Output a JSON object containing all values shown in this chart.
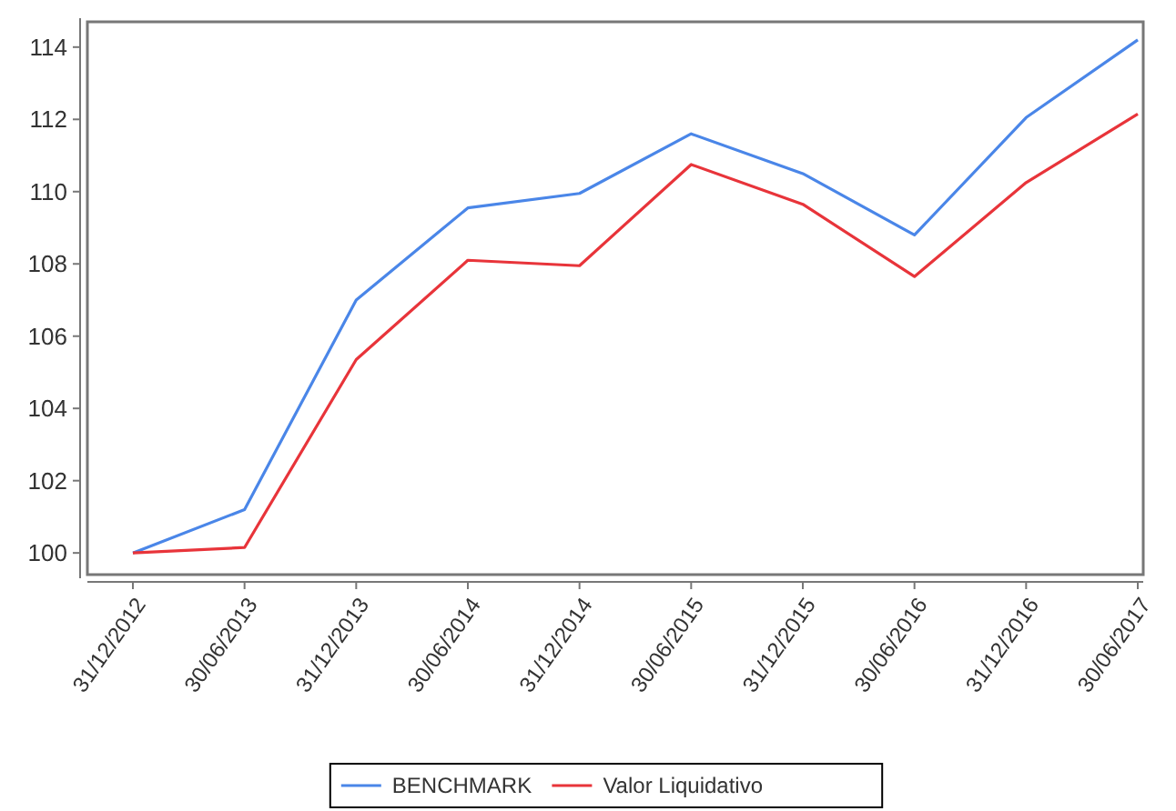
{
  "chart_data": {
    "type": "line",
    "categories": [
      "31/12/2012",
      "30/06/2013",
      "31/12/2013",
      "30/06/2014",
      "31/12/2014",
      "30/06/2015",
      "31/12/2015",
      "30/06/2016",
      "31/12/2016",
      "30/06/2017"
    ],
    "series": [
      {
        "name": "BENCHMARK",
        "color": "#4a86e8",
        "values": [
          100,
          101.2,
          107.0,
          109.55,
          109.95,
          111.6,
          110.5,
          108.8,
          112.05,
          114.2
        ]
      },
      {
        "name": "Valor Liquidativo",
        "color": "#e8343a",
        "values": [
          100,
          100.15,
          105.35,
          108.1,
          107.95,
          110.75,
          109.65,
          107.65,
          110.25,
          112.15
        ]
      }
    ],
    "ylim": [
      99.4,
      114.7
    ],
    "yticks": [
      100,
      102,
      104,
      106,
      108,
      110,
      112,
      114
    ],
    "grid": false,
    "legend": "bottom",
    "marker": "none",
    "line_style": "solid"
  }
}
